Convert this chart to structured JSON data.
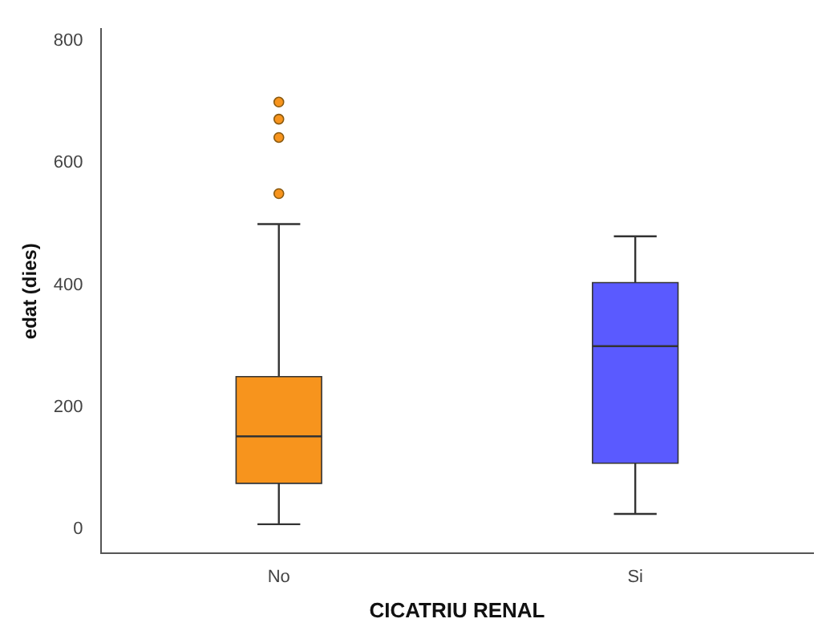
{
  "chart_data": {
    "type": "box",
    "xlabel": "CICATRIU RENAL",
    "ylabel": "edat (dies)",
    "categories": [
      "No",
      "Si"
    ],
    "colors": [
      "#f7941d",
      "#5a5aff"
    ],
    "boxes": [
      {
        "low": 8,
        "q1": 75,
        "median": 152,
        "q3": 250,
        "high": 500,
        "outliers": [
          550,
          642,
          672,
          700
        ]
      },
      {
        "low": 25,
        "q1": 108,
        "median": 300,
        "q3": 404,
        "high": 480
      }
    ],
    "ylim": [
      -40,
      820
    ],
    "yticks": [
      0,
      200,
      400,
      600,
      800
    ],
    "grid": false,
    "legend": false
  }
}
